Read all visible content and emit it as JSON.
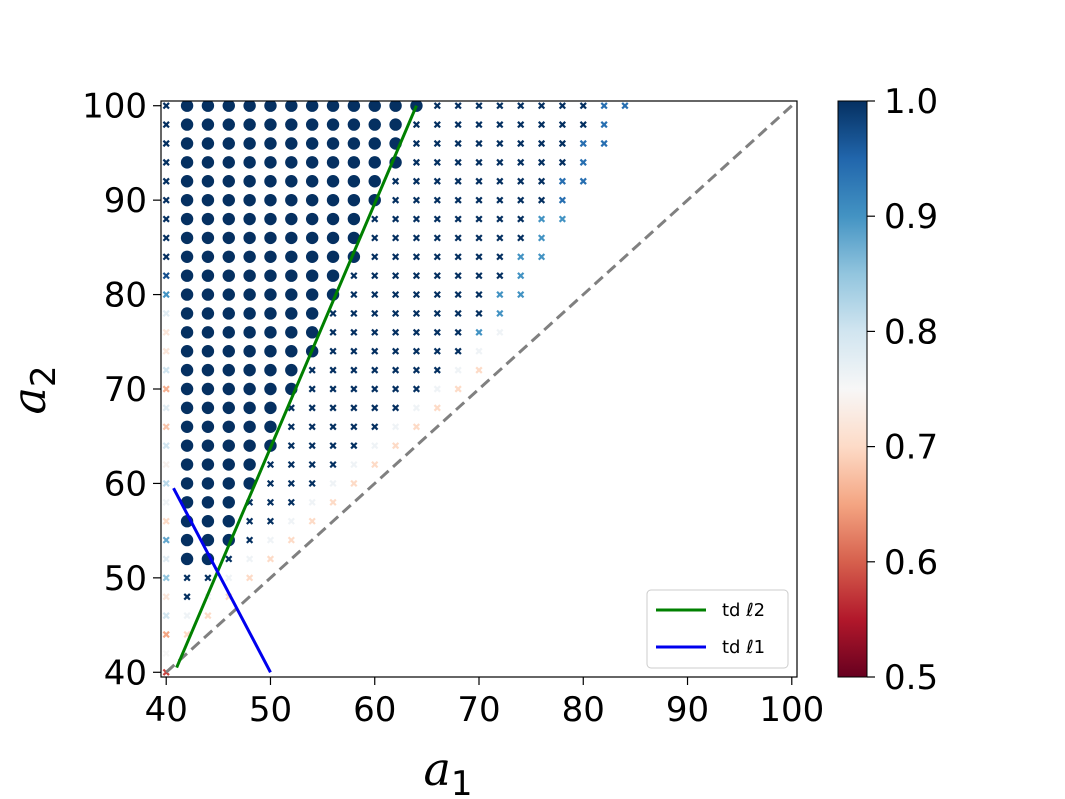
{
  "chart_data": {
    "type": "scatter",
    "title": "",
    "x_axis": {
      "label_base": "a",
      "label_sub": "1",
      "range": [
        39.5,
        100.5
      ],
      "ticks": [
        40,
        50,
        60,
        70,
        80,
        90,
        100
      ]
    },
    "y_axis": {
      "label_base": "a",
      "label_sub": "2",
      "range": [
        39.5,
        100.5
      ],
      "ticks": [
        40,
        50,
        60,
        70,
        80,
        90,
        100
      ]
    },
    "grid": false,
    "grid_step": 2,
    "points_note_value_range": [
      0.5,
      1.0
    ],
    "region_rule": "Points exist for a1 >= 40, a2 >= a1 + 2, up to a2 = 100; upper boundary a1 <= (a2 + 68)/2.",
    "large_markers_rule": "Large dots for points with a2 >= 2.5*a1 - 61.5 (left of the green line), else small x markers.",
    "dashed_diagonal": {
      "x": [
        40,
        100
      ],
      "y": [
        40,
        100
      ],
      "color": "#808080",
      "style": "dashed"
    },
    "lines": [
      {
        "name": "td ℓ2",
        "color": "#008000",
        "x": [
          41,
          64
        ],
        "y": [
          40.5,
          100
        ]
      },
      {
        "name": "td ℓ1",
        "color": "#0000ee",
        "x": [
          40.7,
          50
        ],
        "y": [
          59.5,
          40
        ]
      }
    ],
    "legend": {
      "position": "lower-right",
      "entries": [
        {
          "label": "td ℓ2",
          "color": "#008000"
        },
        {
          "label": "td ℓ1",
          "color": "#0000ee"
        }
      ]
    },
    "colorbar": {
      "colormap": "RdBu",
      "range": [
        0.5,
        1.0
      ],
      "ticks": [
        "0.5",
        "0.6",
        "0.7",
        "0.8",
        "0.9",
        "1.0"
      ],
      "stops": [
        "#67001f",
        "#b2182b",
        "#d6604d",
        "#f4a582",
        "#fddbc7",
        "#f7f7f7",
        "#d1e5f0",
        "#92c5de",
        "#4393c3",
        "#2166ac",
        "#053061"
      ]
    }
  }
}
